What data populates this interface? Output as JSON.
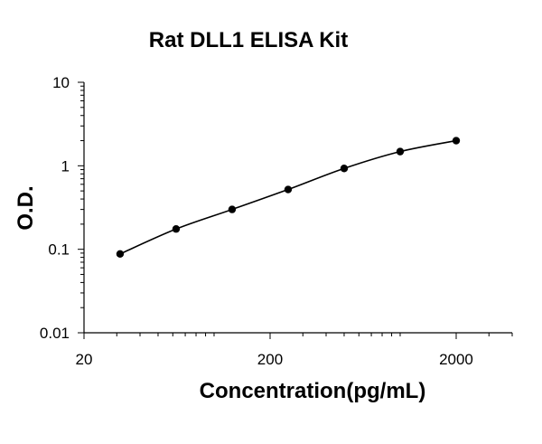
{
  "chart_data": {
    "type": "scatter",
    "title": "Rat DLL1 ELISA Kit",
    "xlabel": "Concentration(pg/mL)",
    "ylabel": "O.D.",
    "x_scale": "log",
    "y_scale": "log",
    "xlim": [
      20,
      4000
    ],
    "ylim": [
      0.01,
      10
    ],
    "x_ticks": [
      20,
      200,
      2000
    ],
    "x_tick_labels": [
      "20",
      "200",
      "2000"
    ],
    "y_ticks": [
      0.01,
      0.1,
      1,
      10
    ],
    "y_tick_labels": [
      "0.01",
      "0.1",
      "1",
      "10"
    ],
    "grid": false,
    "legend": "none",
    "series": [
      {
        "x": [
          31.25,
          62.5,
          125,
          250,
          500,
          1000,
          2000
        ],
        "y": [
          0.088,
          0.175,
          0.3,
          0.52,
          0.93,
          1.48,
          2.0
        ],
        "marker": "circle",
        "trendline": true
      }
    ],
    "colors": {
      "line": "#000000",
      "marker": "#000000"
    }
  }
}
